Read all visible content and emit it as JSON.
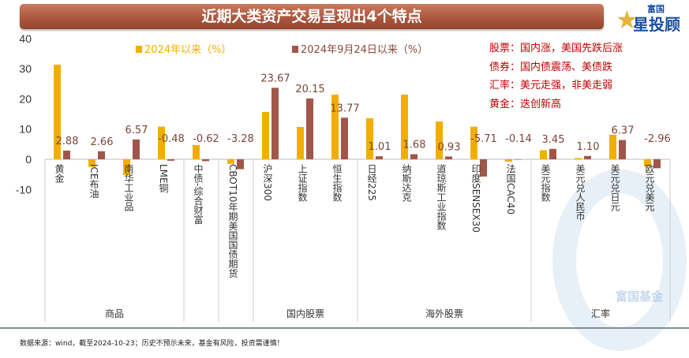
{
  "title": "近期大类资产交易呈现出4个特点",
  "logo": {
    "top": "富国",
    "bottom": "星投顾"
  },
  "watermark": "富国基金",
  "notes": [
    "股票：国内涨，美国先跌后涨",
    "债券：国内债震荡、美债跌",
    "汇率：美元走强，非美走弱",
    "黄金：迭创新高"
  ],
  "footer": "数据来源：wind，截至2024-10-23；历史不预示未来，基金有风险，投资需谨慎！",
  "colors": {
    "series1": "#F2AE00",
    "series2": "#A0574A",
    "notes": "#C00000",
    "title_bar": "#A9553D"
  },
  "chart_data": {
    "type": "bar",
    "categories": [
      "黄金",
      "ICE布油",
      "南华工业品",
      "LME铜",
      "中债-综合财富",
      "CBOT10年期美国国债期货",
      "沪深300",
      "上证指数",
      "恒生指数",
      "日经225",
      "纳斯达克",
      "道琼斯工业指数",
      "印度SENSEX30",
      "法国CAC40",
      "美元指数",
      "美元兑人民币",
      "美元兑日元",
      "欧元兑美元"
    ],
    "groups": [
      {
        "label": "商品",
        "count": 4
      },
      {
        "label": "",
        "count": 1
      },
      {
        "label": "",
        "count": 1
      },
      {
        "label": "国内股票",
        "count": 3
      },
      {
        "label": "海外股票",
        "count": 5
      },
      {
        "label": "汇率",
        "count": 4
      }
    ],
    "series": [
      {
        "name": "2024年以来（%）",
        "values": [
          31.3,
          -2.5,
          -5.2,
          10.8,
          4.7,
          -1.5,
          15.7,
          10.7,
          21.4,
          13.6,
          21.4,
          12.5,
          10.8,
          -0.8,
          3.0,
          0.4,
          8.1,
          -2.4
        ]
      },
      {
        "name": "2024年9月24日以来（%）",
        "values": [
          2.88,
          2.66,
          6.57,
          -0.48,
          -0.62,
          -3.28,
          23.67,
          20.15,
          13.77,
          1.01,
          1.68,
          0.93,
          -5.71,
          -0.14,
          3.45,
          1.1,
          6.37,
          -2.96
        ],
        "labels": [
          "2.88",
          "2.66",
          "6.57",
          "-0.48",
          "-0.62",
          "-3.28",
          "23.67",
          "20.15",
          "13.77",
          "1.01",
          "1.68",
          "0.93",
          "-5.71",
          "-0.14",
          "3.45",
          "1.10",
          "6.37",
          "-2.96"
        ]
      }
    ],
    "yticks": [
      "40",
      "30",
      "20",
      "10",
      "0",
      "-10"
    ],
    "ylim": [
      -10,
      40
    ],
    "legend": "top",
    "grid": false
  }
}
